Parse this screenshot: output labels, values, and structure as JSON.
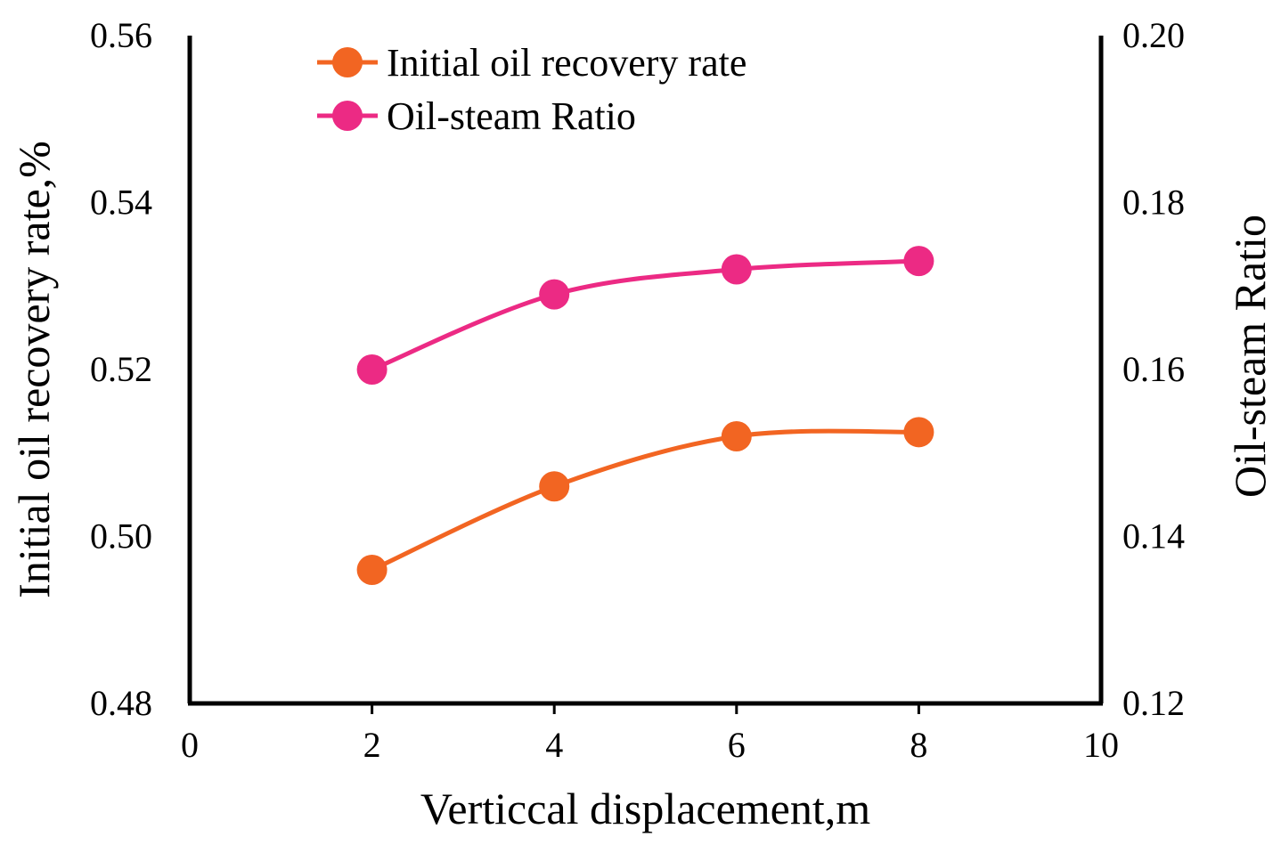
{
  "chart_data": {
    "type": "line",
    "title": "",
    "xlabel": "Verticcal displacement,m",
    "ylabel": "Initial oil recovery rate,%",
    "y2label": "Oil-steam Ratio",
    "xlim": [
      0,
      10
    ],
    "ylim": [
      0.48,
      0.56
    ],
    "y2lim": [
      0.12,
      0.2
    ],
    "x_ticks": [
      "0",
      "2",
      "4",
      "6",
      "8",
      "10"
    ],
    "y_ticks": [
      "0.48",
      "0.50",
      "0.52",
      "0.54",
      "0.56"
    ],
    "y2_ticks": [
      "0.12",
      "0.14",
      "0.16",
      "0.18",
      "0.20"
    ],
    "grid": false,
    "legend_position": "top-left",
    "series": [
      {
        "name": "Initial oil recovery rate",
        "axis": "left",
        "color": "#f26522",
        "marker": "circle",
        "x": [
          2,
          4,
          6,
          8
        ],
        "values": [
          0.496,
          0.506,
          0.512,
          0.5125
        ]
      },
      {
        "name": "Oil-steam Ratio",
        "axis": "right",
        "color": "#ec2a84",
        "marker": "circle",
        "x": [
          2,
          4,
          6,
          8
        ],
        "values": [
          0.16,
          0.169,
          0.172,
          0.173
        ]
      }
    ]
  }
}
